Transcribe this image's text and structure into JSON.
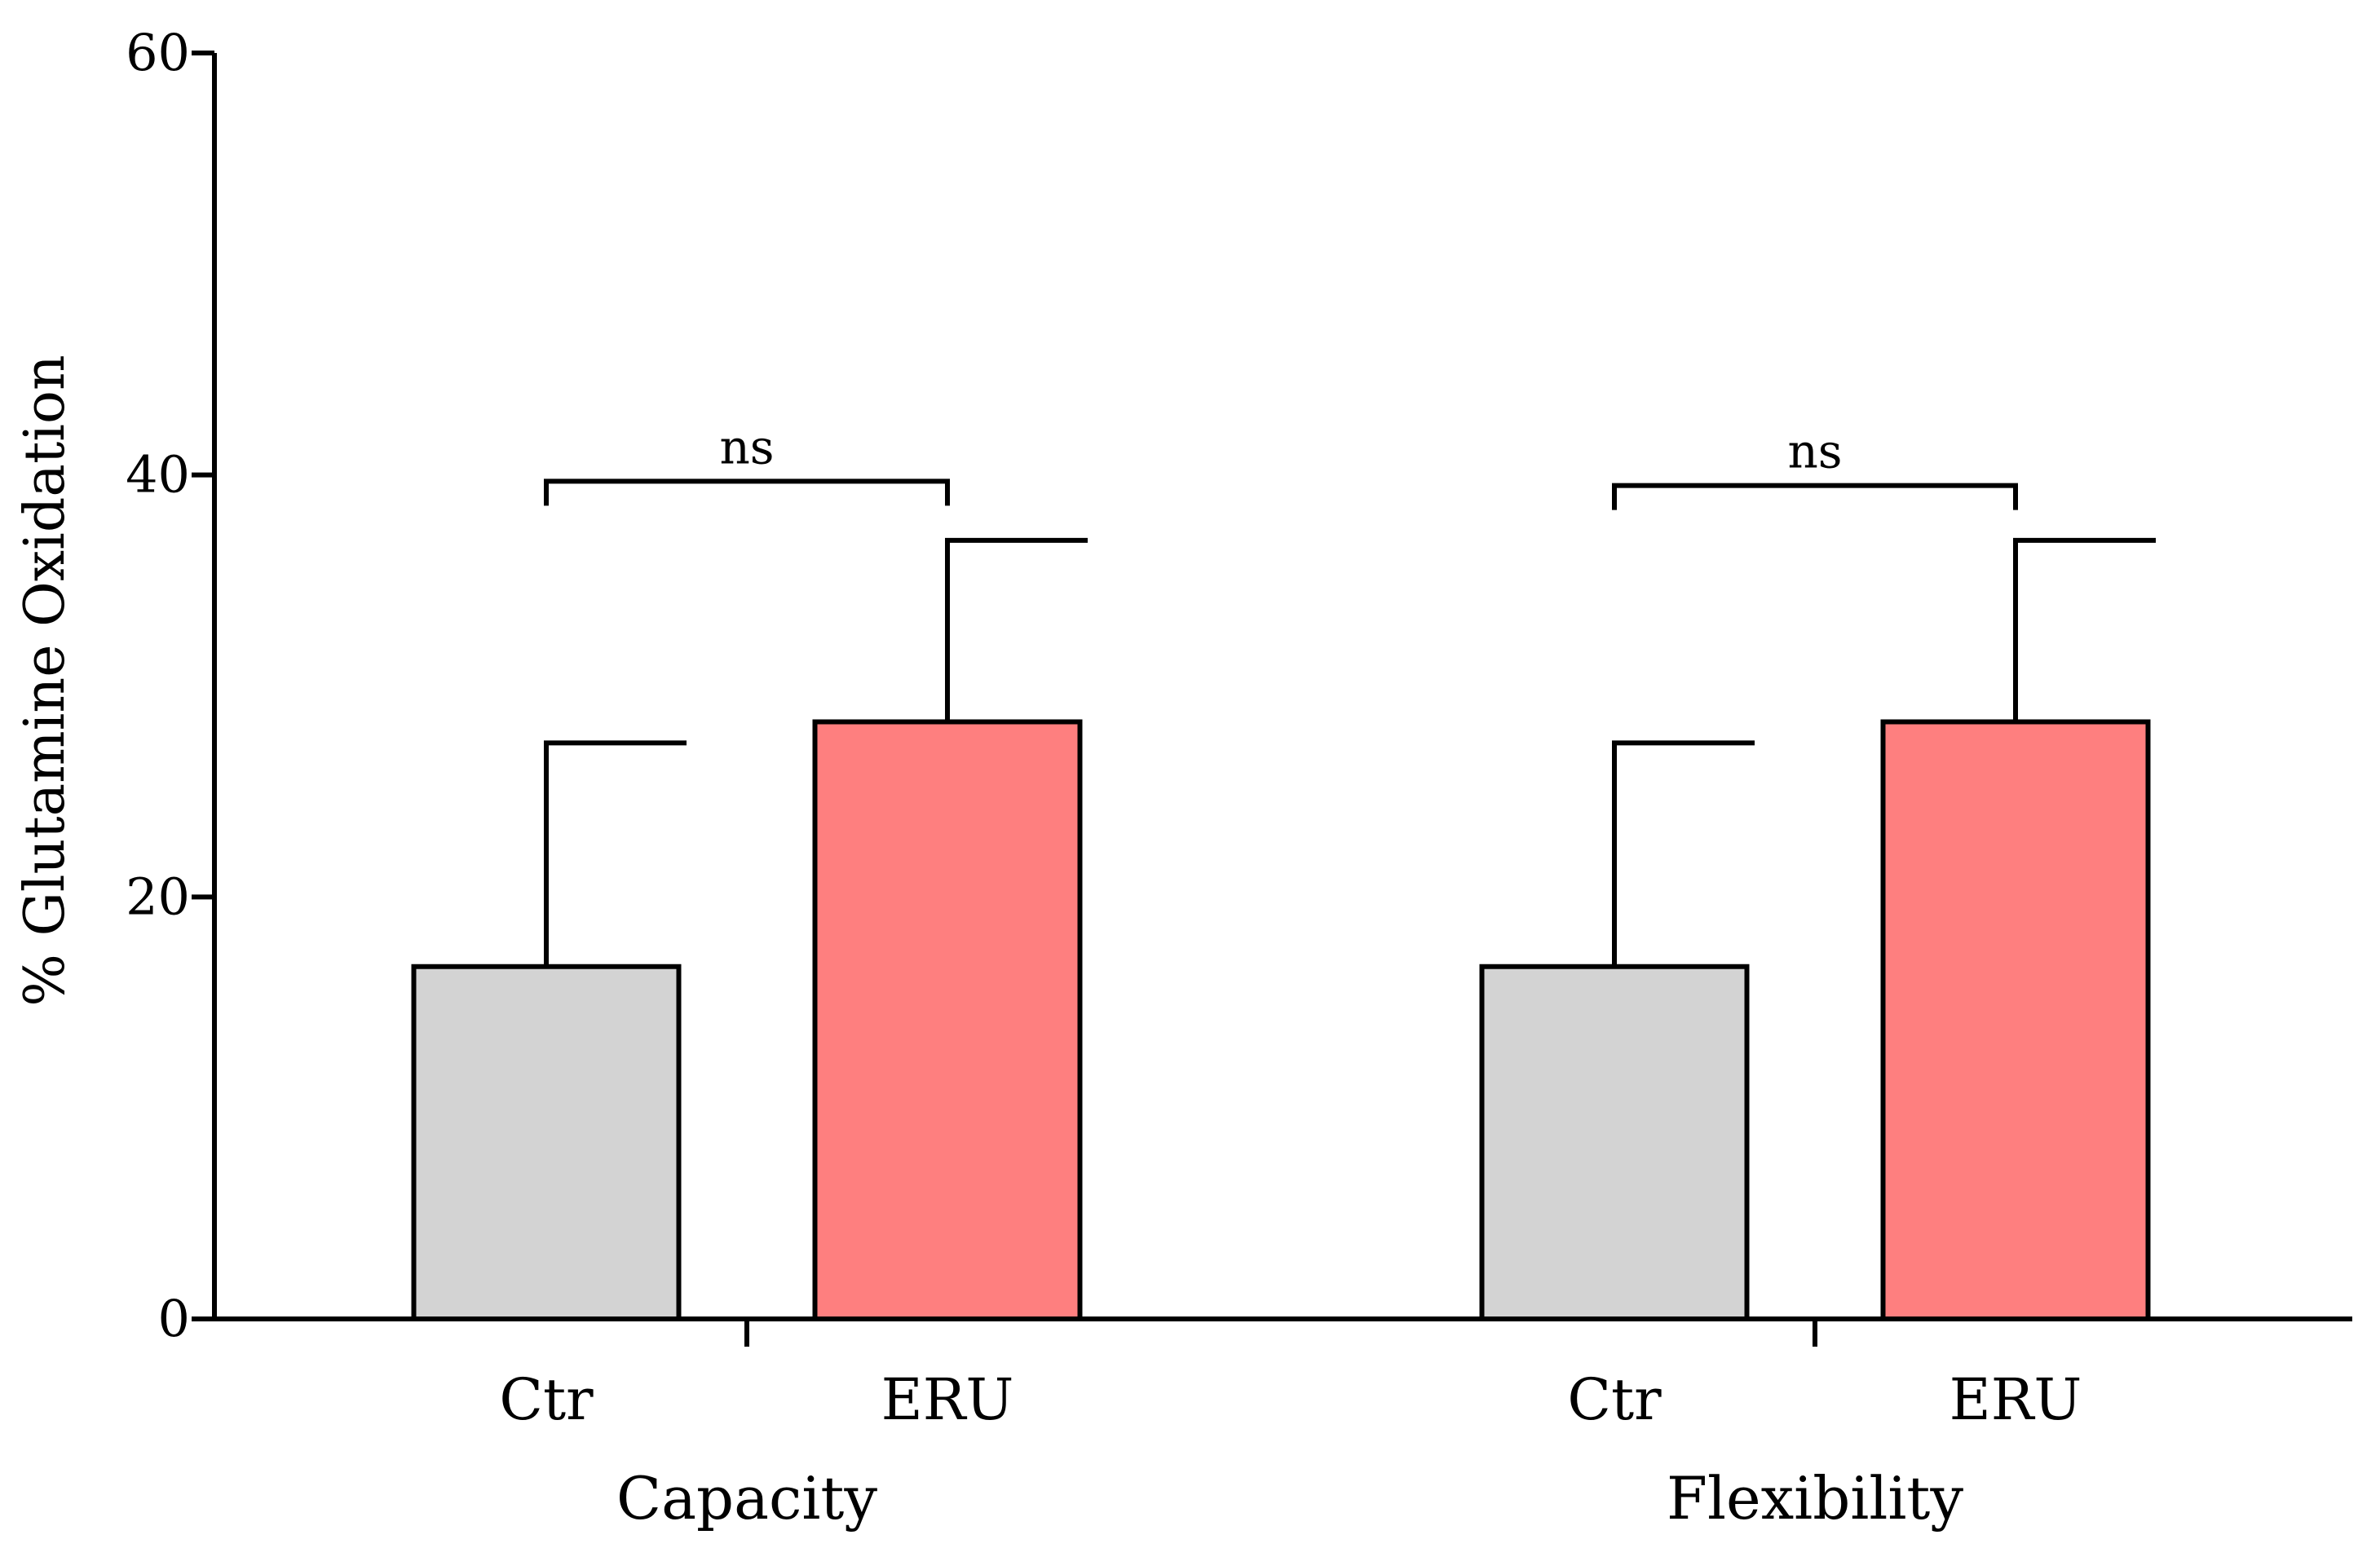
{
  "chart_data": {
    "type": "bar",
    "title": "",
    "xlabel": "",
    "ylabel": "% Glutamine Oxidation",
    "ylim": [
      0,
      60
    ],
    "yticks": [
      0,
      20,
      40,
      60
    ],
    "groups": [
      {
        "name": "Capacity",
        "bars": [
          {
            "category": "Ctr",
            "value": 16.7,
            "error": 10.6,
            "color": "#d3d3d3"
          },
          {
            "category": "ERU",
            "value": 28.3,
            "error": 8.6,
            "color": "#fe7f7f"
          }
        ],
        "significance": {
          "label": "ns",
          "y": 39.7
        }
      },
      {
        "name": "Flexibility",
        "bars": [
          {
            "category": "Ctr",
            "value": 16.7,
            "error": 10.6,
            "color": "#d3d3d3"
          },
          {
            "category": "ERU",
            "value": 28.3,
            "error": 8.6,
            "color": "#fe7f7f"
          }
        ],
        "significance": {
          "label": "ns",
          "y": 39.5
        }
      }
    ]
  }
}
